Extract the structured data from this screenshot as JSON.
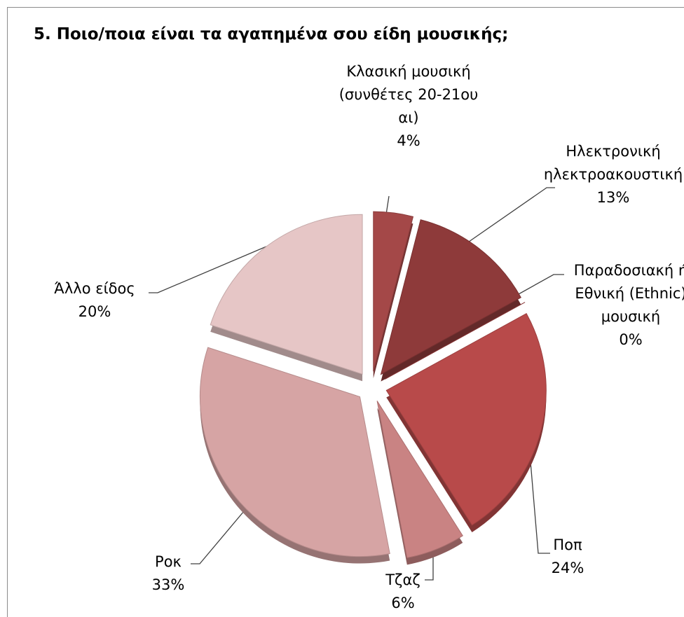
{
  "chart_data": {
    "type": "pie",
    "title": "5. Ποιο/ποια είναι τα αγαπημένα σου είδη μουσικής;",
    "categories": [
      "Κλασική μουσική (συνθέτες 20-21ου αι)",
      "Ηλεκτρονική ηλεκτροακουστική",
      "Παραδοσιακή ή Εθνική (Ethnic) μουσική",
      "Ποπ",
      "Τζαζ",
      "Ροκ",
      "Άλλο είδος"
    ],
    "values": [
      4,
      13,
      0,
      24,
      6,
      33,
      20
    ],
    "value_labels": [
      "4%",
      "13%",
      "0%",
      "24%",
      "6%",
      "33%",
      "20%"
    ],
    "colors": [
      "#a44848",
      "#8e3a3a",
      "#9c3c3c",
      "#b84a4a",
      "#c98383",
      "#d6a4a4",
      "#e6c6c6"
    ]
  }
}
